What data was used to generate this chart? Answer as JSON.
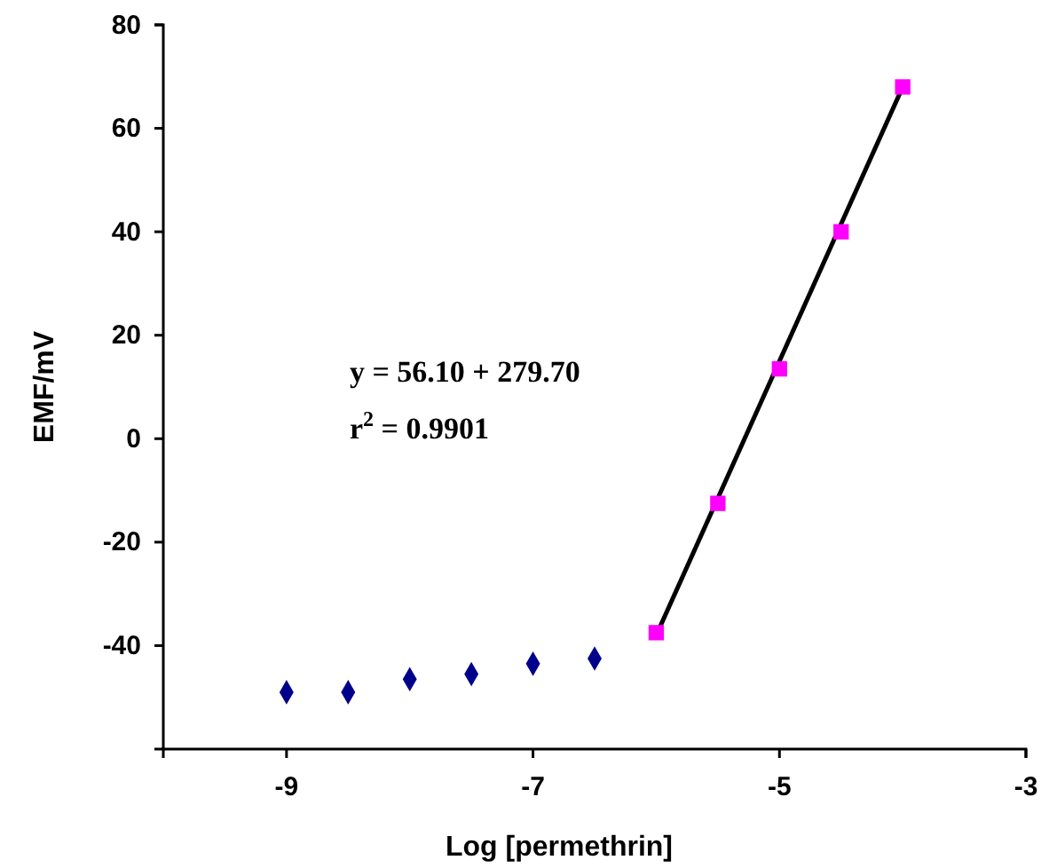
{
  "chart_data": {
    "type": "scatter",
    "xlabel": "Log [permethrin]",
    "ylabel": "EMF/mV",
    "xlim": [
      -10,
      -3
    ],
    "xticks": [
      -9,
      -7,
      -5,
      -3
    ],
    "ylim": [
      -60,
      80
    ],
    "yticks": [
      -40,
      -20,
      0,
      20,
      40,
      60,
      80
    ],
    "grid": false,
    "annotations": [
      "y = 56.10 + 279.70",
      "r$^{2}$ = 0.9901"
    ],
    "series": [
      {
        "marker": "diamond",
        "color": "#00008b",
        "x": [
          -9,
          -8.5,
          -8,
          -7.5,
          -7,
          -6.5
        ],
        "values": [
          -49,
          -49,
          -46.5,
          -45.5,
          -43.5,
          -42.5
        ]
      },
      {
        "marker": "square",
        "color": "#ff00ff",
        "x": [
          -6,
          -5.5,
          -5,
          -4.5,
          -4
        ],
        "values": [
          -37.5,
          -12.5,
          13.5,
          40,
          68
        ]
      },
      {
        "type": "line",
        "marker": "none",
        "line_style": "solid",
        "color": "#000000",
        "x": [
          -6,
          -4
        ],
        "values": [
          -38,
          68
        ]
      }
    ]
  }
}
